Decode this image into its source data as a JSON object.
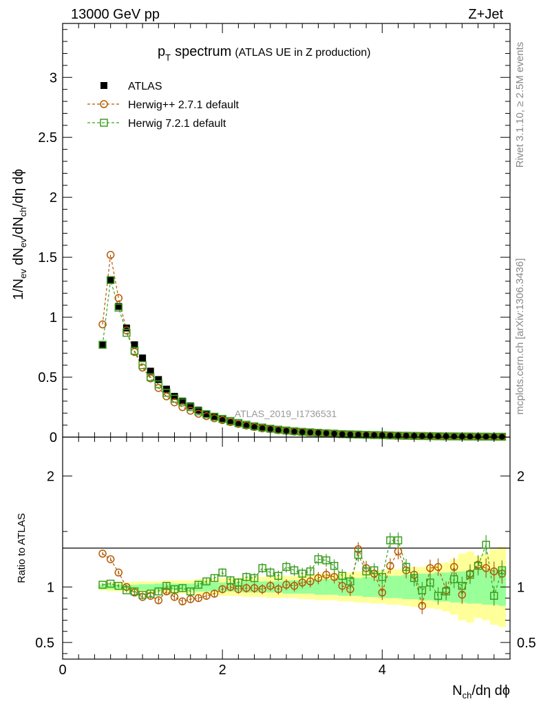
{
  "header": {
    "left_label": "13000 GeV pp",
    "right_label": "Z+Jet"
  },
  "side_labels": {
    "rivet": "Rivet 3.1.10, ≥ 2.5M events",
    "mcplots": "mcplots.cern.ch [arXiv:1306.3436]"
  },
  "chart_data": {
    "type": "scatter",
    "title_main": "p",
    "title_sub": "T",
    "title_rest": "spectrum",
    "title_extra": "(ATLAS UE in Z production)",
    "analysis_label": "ATLAS_2019_I1736531",
    "xlabel": {
      "base": "N",
      "sub": "ch",
      "rest": "/dη dϕ"
    },
    "ylabel": {
      "p1": "1/N",
      "s1": "ev",
      "p2": " dN",
      "s2": "ev",
      "p3": "/dN",
      "s3": "ch",
      "p4": "/dη dϕ"
    },
    "ratio_ylabel": "Ratio to ATLAS",
    "xlim": [
      0,
      5.6
    ],
    "ylim": [
      0,
      3.45
    ],
    "ratio_ylim": [
      0.35,
      2.35
    ],
    "x_ticks": [
      "0",
      "2",
      "4"
    ],
    "y_ticks": [
      "0",
      "0.5",
      "1",
      "1.5",
      "2",
      "2.5",
      "3"
    ],
    "ratio_ticks": [
      "0.5",
      "1",
      "2"
    ],
    "legend": [
      {
        "name": "ATLAS",
        "marker": "filled-square",
        "color": "#000000"
      },
      {
        "name": "Herwig++ 2.7.1 default",
        "marker": "open-circle",
        "color": "#b35900"
      },
      {
        "name": "Herwig 7.2.1 default",
        "marker": "open-square",
        "color": "#3a9e1f"
      }
    ],
    "x": [
      0.5,
      0.6,
      0.7,
      0.8,
      0.9,
      1.0,
      1.1,
      1.2,
      1.3,
      1.4,
      1.5,
      1.6,
      1.7,
      1.8,
      1.9,
      2.0,
      2.1,
      2.2,
      2.3,
      2.4,
      2.5,
      2.6,
      2.7,
      2.8,
      2.9,
      3.0,
      3.1,
      3.2,
      3.3,
      3.4,
      3.5,
      3.6,
      3.7,
      3.8,
      3.9,
      4.0,
      4.1,
      4.2,
      4.3,
      4.4,
      4.5,
      4.6,
      4.7,
      4.8,
      4.9,
      5.0,
      5.1,
      5.2,
      5.3,
      5.4,
      5.5
    ],
    "series": [
      {
        "name": "ATLAS",
        "values": [
          0.77,
          1.31,
          1.09,
          0.91,
          0.77,
          0.66,
          0.55,
          0.48,
          0.4,
          0.34,
          0.3,
          0.26,
          0.225,
          0.195,
          0.17,
          0.148,
          0.128,
          0.112,
          0.098,
          0.086,
          0.076,
          0.067,
          0.059,
          0.052,
          0.046,
          0.041,
          0.037,
          0.033,
          0.029,
          0.026,
          0.023,
          0.021,
          0.019,
          0.017,
          0.015,
          0.014,
          0.012,
          0.011,
          0.01,
          0.009,
          0.008,
          0.0075,
          0.007,
          0.006,
          0.0055,
          0.005,
          0.0045,
          0.004,
          0.0036,
          0.0032,
          0.003
        ]
      },
      {
        "name": "Herwig++ 2.7.1 default",
        "values": [
          0.94,
          1.52,
          1.16,
          0.89,
          0.71,
          0.58,
          0.49,
          0.41,
          0.34,
          0.29,
          0.25,
          0.22,
          0.195,
          0.175,
          0.157,
          0.142,
          0.126,
          0.11,
          0.097,
          0.084,
          0.073,
          0.067,
          0.058,
          0.052,
          0.046,
          0.042,
          0.039,
          0.035,
          0.032,
          0.029,
          0.024,
          0.022,
          0.021,
          0.019,
          0.017,
          0.016,
          0.014,
          0.013,
          0.012,
          0.011,
          0.009,
          0.009,
          0.008,
          0.007,
          0.006,
          0.006,
          0.005,
          0.005,
          0.004,
          0.004,
          0.003
        ]
      },
      {
        "name": "Herwig 7.2.1 default",
        "values": [
          0.77,
          1.31,
          1.08,
          0.87,
          0.72,
          0.6,
          0.5,
          0.44,
          0.37,
          0.32,
          0.29,
          0.25,
          0.215,
          0.19,
          0.17,
          0.152,
          0.135,
          0.118,
          0.103,
          0.09,
          0.08,
          0.07,
          0.062,
          0.055,
          0.049,
          0.044,
          0.04,
          0.036,
          0.032,
          0.029,
          0.025,
          0.023,
          0.021,
          0.019,
          0.017,
          0.016,
          0.014,
          0.012,
          0.011,
          0.01,
          0.009,
          0.008,
          0.007,
          0.006,
          0.006,
          0.005,
          0.005,
          0.004,
          0.004,
          0.003,
          0.003
        ]
      }
    ],
    "ratios": [
      {
        "name": "Herwig++ 2.7.1 default",
        "values": [
          1.3,
          1.25,
          1.13,
          1.0,
          0.95,
          0.91,
          0.92,
          0.88,
          0.96,
          0.91,
          0.87,
          0.89,
          0.9,
          0.92,
          0.94,
          0.98,
          1.0,
          0.98,
          0.99,
          0.99,
          0.98,
          1.01,
          0.98,
          1.02,
          1.01,
          1.04,
          1.05,
          1.08,
          1.11,
          1.09,
          1.01,
          0.98,
          1.34,
          1.17,
          1.12,
          0.95,
          1.19,
          1.32,
          1.15,
          1.11,
          0.83,
          1.17,
          1.18,
          0.97,
          1.18,
          0.93,
          1.12,
          1.2,
          1.17,
          1.14,
          1.12
        ]
      },
      {
        "name": "Herwig 7.2.1 default",
        "values": [
          1.02,
          1.03,
          1.01,
          0.97,
          0.96,
          0.93,
          0.94,
          0.96,
          1.01,
          0.98,
          0.99,
          0.96,
          1.02,
          1.05,
          1.08,
          1.13,
          1.06,
          1.04,
          1.09,
          1.08,
          1.17,
          1.13,
          1.1,
          1.18,
          1.15,
          1.12,
          1.14,
          1.25,
          1.24,
          1.19,
          1.1,
          1.05,
          1.29,
          1.14,
          1.15,
          1.09,
          1.42,
          1.42,
          1.18,
          1.08,
          0.97,
          1.04,
          0.92,
          0.96,
          1.07,
          1.01,
          1.11,
          1.19,
          1.38,
          0.92,
          1.15
        ]
      }
    ],
    "ratio_bands": {
      "inner_half_width": [
        0.02,
        0.02,
        0.02,
        0.02,
        0.02,
        0.025,
        0.025,
        0.03,
        0.03,
        0.03,
        0.03,
        0.03,
        0.04,
        0.04,
        0.04,
        0.04,
        0.04,
        0.04,
        0.05,
        0.05,
        0.05,
        0.05,
        0.05,
        0.06,
        0.06,
        0.06,
        0.06,
        0.07,
        0.07,
        0.07,
        0.08,
        0.08,
        0.08,
        0.09,
        0.09,
        0.1,
        0.1,
        0.1,
        0.11,
        0.11,
        0.12,
        0.12,
        0.13,
        0.13,
        0.14,
        0.14,
        0.15,
        0.15,
        0.16,
        0.16,
        0.17
      ],
      "outer_half_width": [
        0.03,
        0.04,
        0.04,
        0.04,
        0.05,
        0.05,
        0.05,
        0.05,
        0.06,
        0.06,
        0.06,
        0.06,
        0.07,
        0.07,
        0.07,
        0.08,
        0.08,
        0.08,
        0.09,
        0.09,
        0.09,
        0.1,
        0.1,
        0.1,
        0.1,
        0.11,
        0.11,
        0.12,
        0.12,
        0.12,
        0.13,
        0.13,
        0.14,
        0.14,
        0.15,
        0.15,
        0.16,
        0.16,
        0.17,
        0.18,
        0.18,
        0.19,
        0.2,
        0.22,
        0.25,
        0.3,
        0.32,
        0.28,
        0.3,
        0.34,
        0.36
      ]
    }
  }
}
